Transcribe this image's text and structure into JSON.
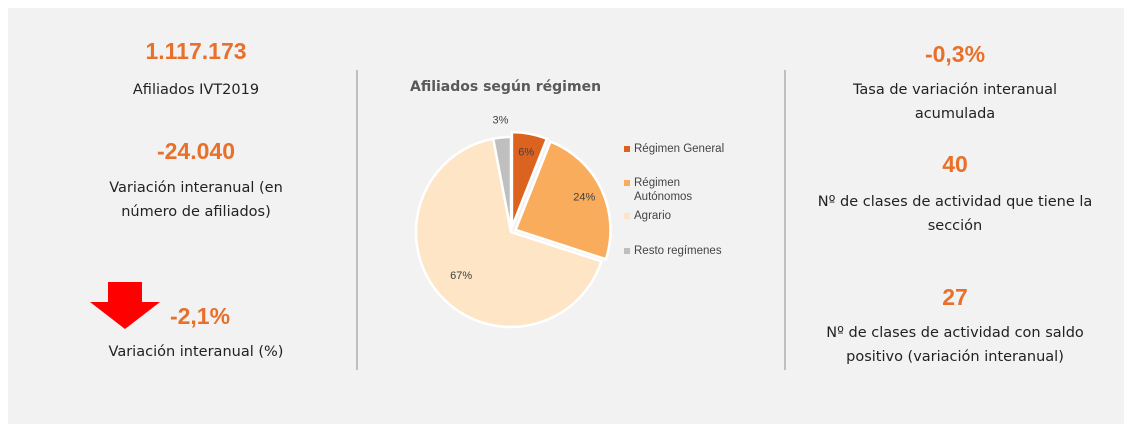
{
  "left": [
    {
      "value": "1.117.173",
      "label": "Afiliados IVT2019"
    },
    {
      "value": "-24.040",
      "label": "Variación interanual (en número de afiliados)"
    },
    {
      "value": "-2,1%",
      "label": "Variación interanual (%)"
    }
  ],
  "right": [
    {
      "value": "-0,3%",
      "label": "Tasa de variación interanual acumulada"
    },
    {
      "value": "40",
      "label": "Nº de clases de actividad que tiene la sección"
    },
    {
      "value": "27",
      "label": "Nº de clases de actividad con saldo positivo (variación interanual)"
    }
  ],
  "chart_data": {
    "type": "pie",
    "title": "Afiliados según régimen",
    "categories": [
      "Régimen General",
      "Régimen Autónomos",
      "Agrario",
      "Resto regímenes"
    ],
    "values": [
      6,
      24,
      67,
      3
    ],
    "value_labels": [
      "6%",
      "24%",
      "67%",
      "3%"
    ],
    "colors": [
      "#dc6220",
      "#f9ac5c",
      "#fde5c6",
      "#bfbfbf"
    ]
  }
}
